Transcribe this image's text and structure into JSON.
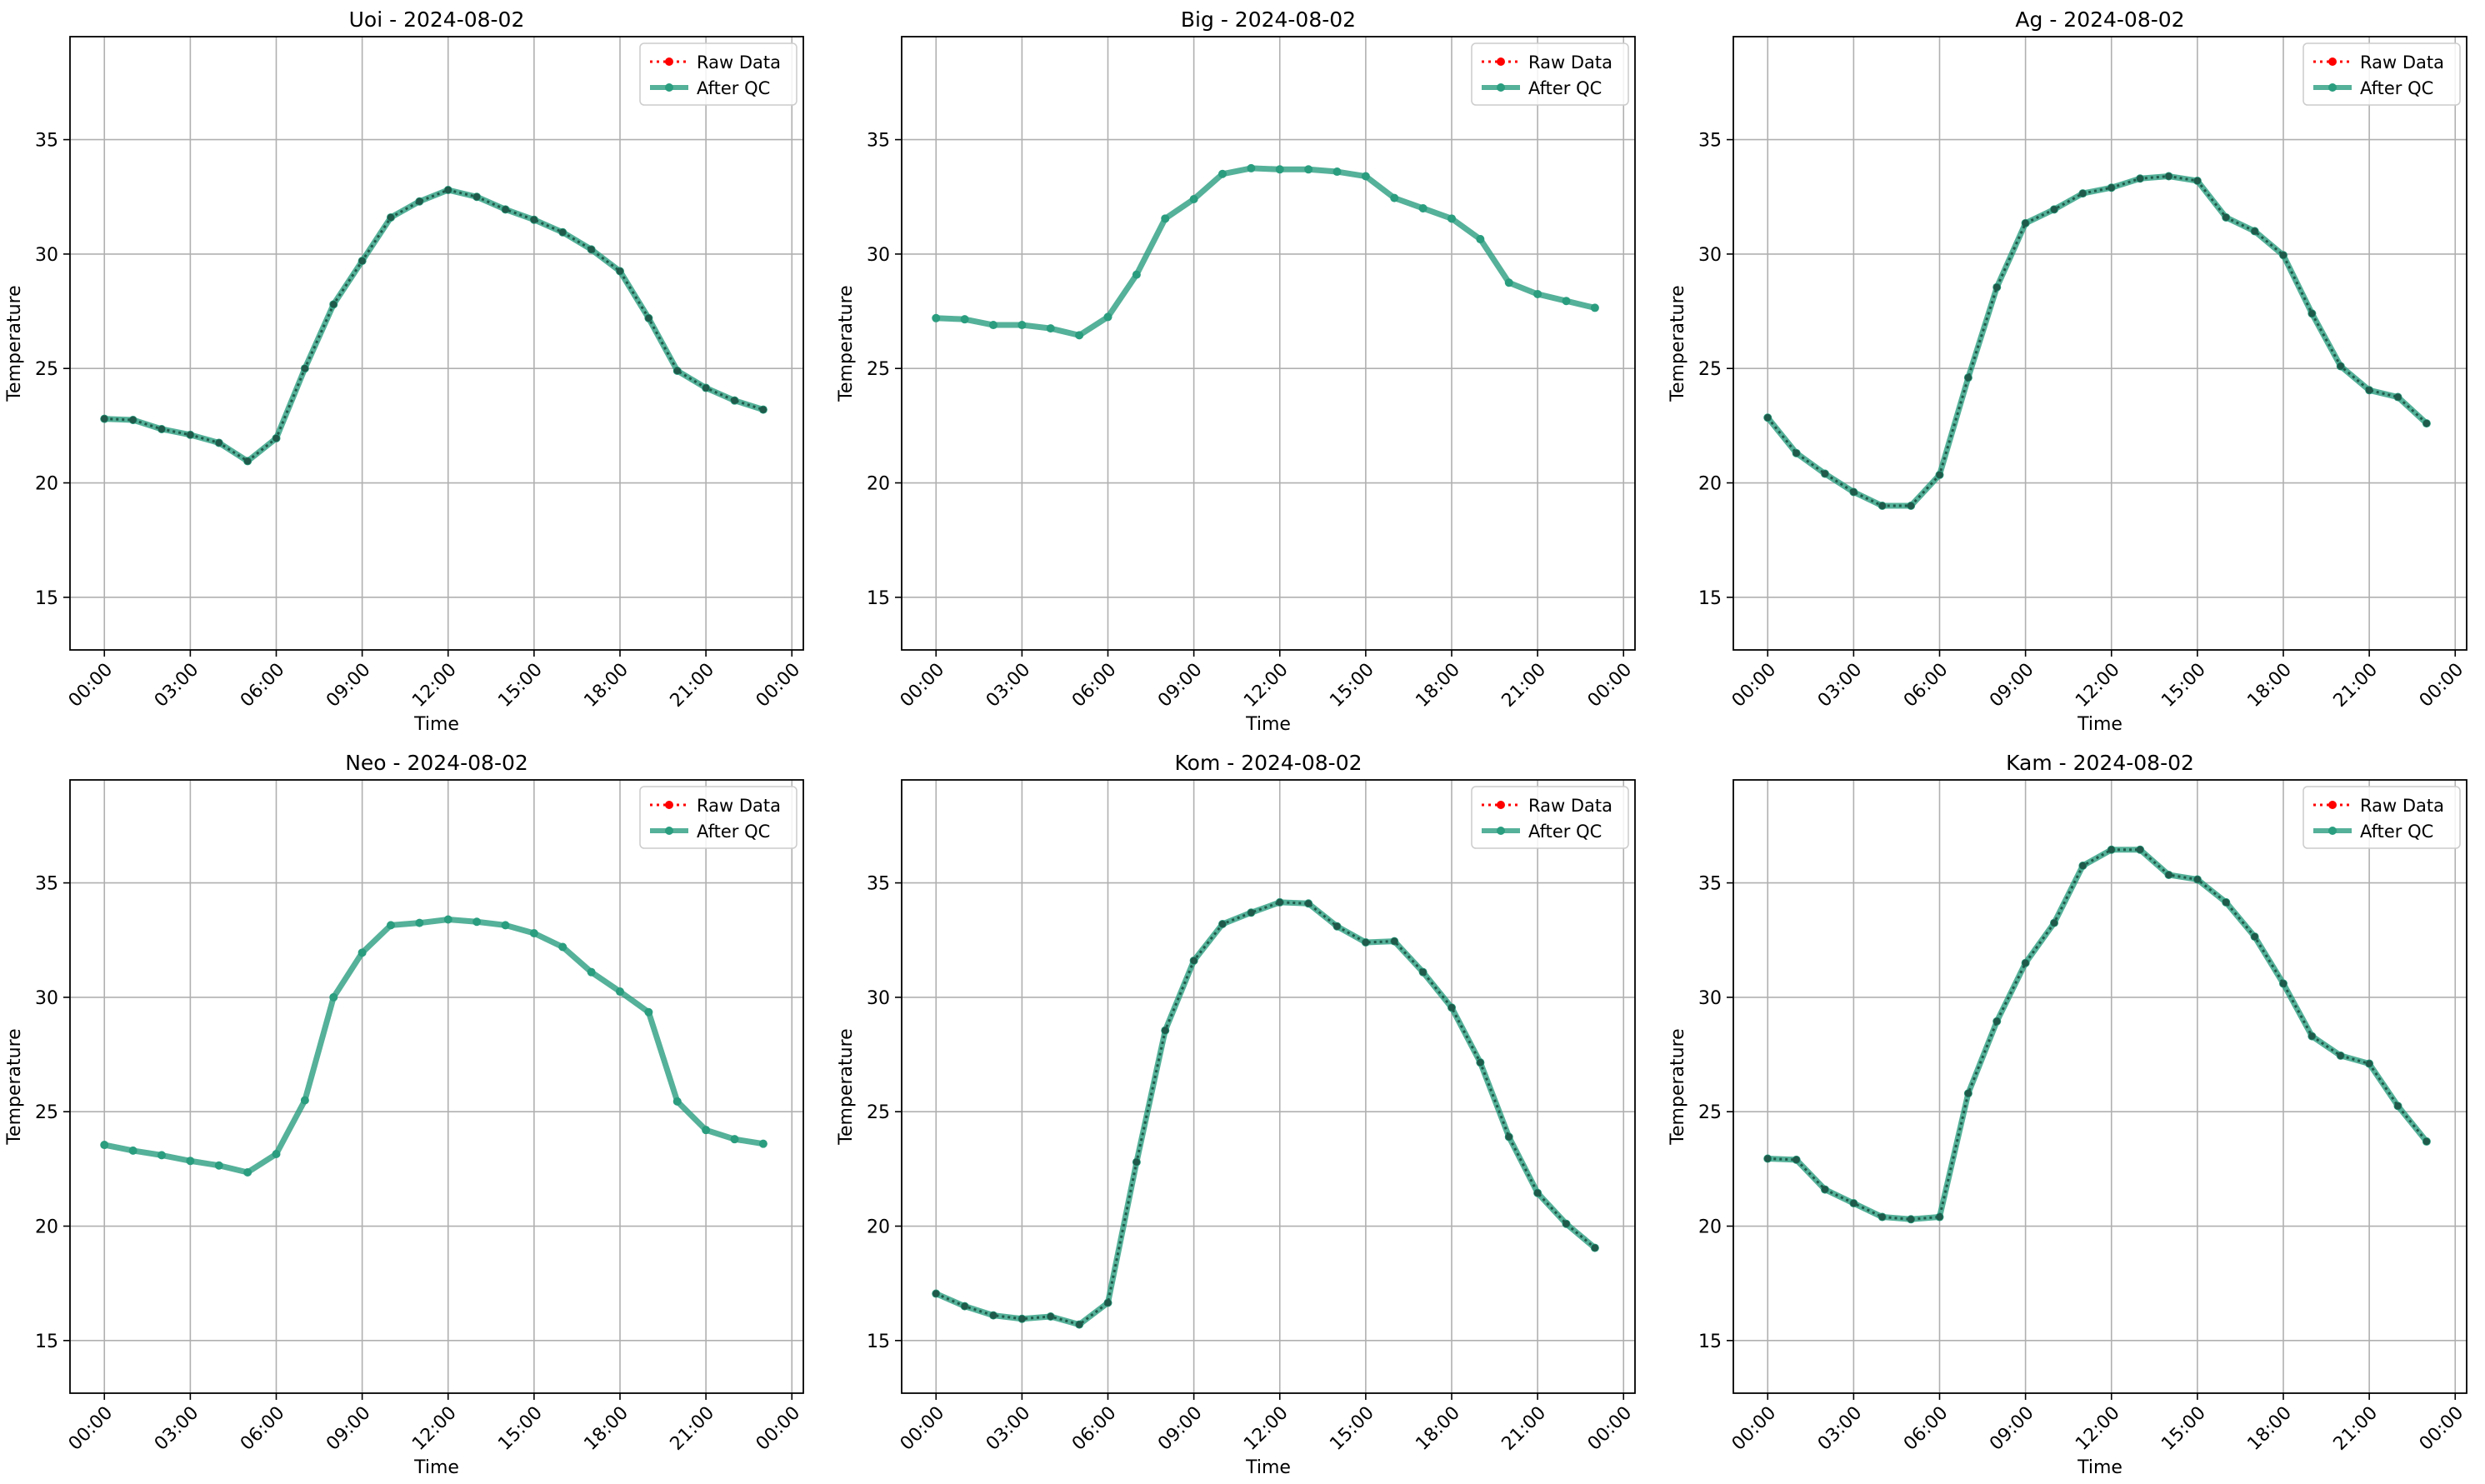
{
  "colors": {
    "raw": "#ff0000",
    "qc": "#2a9d7f",
    "marker_dark": "#1f5a4a",
    "grid": "#b0b0b0",
    "axis": "#000000"
  },
  "legend": {
    "raw_label": "Raw Data",
    "qc_label": "After QC",
    "placement": "upper-right"
  },
  "chart_data": [
    {
      "type": "line",
      "title": "Uoi - 2024-08-02",
      "xlabel": "Time",
      "ylabel": "Temperature",
      "xticks": [
        "00:00",
        "03:00",
        "06:00",
        "09:00",
        "12:00",
        "15:00",
        "18:00",
        "21:00",
        "00:00"
      ],
      "yticks": [
        15,
        20,
        25,
        30,
        35
      ],
      "ylim": [
        12.7,
        39.5
      ],
      "grid": true,
      "x_hours": [
        0,
        1,
        2,
        3,
        4,
        5,
        6,
        7,
        8,
        9,
        10,
        11,
        12,
        13,
        14,
        15,
        16,
        17,
        18,
        19,
        20,
        21,
        22,
        23
      ],
      "series": [
        {
          "name": "Raw Data",
          "values": [
            22.8,
            22.75,
            22.35,
            22.1,
            21.75,
            20.95,
            21.95,
            25.0,
            27.8,
            29.7,
            31.6,
            32.3,
            32.8,
            32.5,
            31.95,
            31.5,
            30.95,
            30.2,
            29.25,
            27.2,
            24.9,
            24.15,
            23.6,
            23.2
          ]
        },
        {
          "name": "After QC",
          "values": [
            22.8,
            22.75,
            22.35,
            22.1,
            21.75,
            20.95,
            21.95,
            25.0,
            27.8,
            29.7,
            31.6,
            32.3,
            32.8,
            32.5,
            31.95,
            31.5,
            30.95,
            30.2,
            29.25,
            27.2,
            24.9,
            24.15,
            23.6,
            23.2
          ]
        }
      ]
    },
    {
      "type": "line",
      "title": "Big - 2024-08-02",
      "xlabel": "Time",
      "ylabel": "Temperature",
      "xticks": [
        "00:00",
        "03:00",
        "06:00",
        "09:00",
        "12:00",
        "15:00",
        "18:00",
        "21:00",
        "00:00"
      ],
      "yticks": [
        15,
        20,
        25,
        30,
        35
      ],
      "ylim": [
        12.7,
        39.5
      ],
      "grid": true,
      "x_hours": [
        0,
        1,
        2,
        3,
        4,
        5,
        6,
        7,
        8,
        9,
        10,
        11,
        12,
        13,
        14,
        15,
        16,
        17,
        18,
        19,
        20,
        21,
        22,
        23
      ],
      "series": [
        {
          "name": "Raw Data",
          "values": []
        },
        {
          "name": "After QC",
          "values": [
            27.2,
            27.15,
            26.9,
            26.9,
            26.75,
            26.45,
            27.25,
            29.1,
            31.55,
            32.4,
            33.5,
            33.75,
            33.7,
            33.7,
            33.6,
            33.4,
            32.45,
            32.0,
            31.55,
            30.65,
            28.75,
            28.25,
            27.95,
            27.65
          ]
        }
      ]
    },
    {
      "type": "line",
      "title": "Ag - 2024-08-02",
      "xlabel": "Time",
      "ylabel": "Temperature",
      "xticks": [
        "00:00",
        "03:00",
        "06:00",
        "09:00",
        "12:00",
        "15:00",
        "18:00",
        "21:00",
        "00:00"
      ],
      "yticks": [
        15,
        20,
        25,
        30,
        35
      ],
      "ylim": [
        12.7,
        39.5
      ],
      "grid": true,
      "x_hours": [
        0,
        1,
        2,
        3,
        4,
        5,
        6,
        7,
        8,
        9,
        10,
        11,
        12,
        13,
        14,
        15,
        16,
        17,
        18,
        19,
        20,
        21,
        22,
        23
      ],
      "series": [
        {
          "name": "Raw Data",
          "values": [
            22.85,
            21.3,
            20.4,
            19.6,
            19.0,
            19.0,
            20.35,
            24.6,
            28.55,
            31.35,
            31.95,
            32.65,
            32.9,
            33.3,
            33.4,
            33.2,
            31.6,
            31.0,
            29.95,
            27.4,
            25.1,
            24.05,
            23.75,
            22.6
          ]
        },
        {
          "name": "After QC",
          "values": [
            22.85,
            21.3,
            20.4,
            19.6,
            19.0,
            19.0,
            20.35,
            24.6,
            28.55,
            31.35,
            31.95,
            32.65,
            32.9,
            33.3,
            33.4,
            33.2,
            31.6,
            31.0,
            29.95,
            27.4,
            25.1,
            24.05,
            23.75,
            22.6
          ]
        }
      ]
    },
    {
      "type": "line",
      "title": "Neo - 2024-08-02",
      "xlabel": "Time",
      "ylabel": "Temperature",
      "xticks": [
        "00:00",
        "03:00",
        "06:00",
        "09:00",
        "12:00",
        "15:00",
        "18:00",
        "21:00",
        "00:00"
      ],
      "yticks": [
        15,
        20,
        25,
        30,
        35
      ],
      "ylim": [
        12.7,
        39.5
      ],
      "grid": true,
      "x_hours": [
        0,
        1,
        2,
        3,
        4,
        5,
        6,
        7,
        8,
        9,
        10,
        11,
        12,
        13,
        14,
        15,
        16,
        17,
        18,
        19,
        20,
        21,
        22,
        23
      ],
      "series": [
        {
          "name": "Raw Data",
          "values": []
        },
        {
          "name": "After QC",
          "values": [
            23.55,
            23.3,
            23.1,
            22.85,
            22.65,
            22.35,
            23.15,
            25.5,
            30.0,
            31.95,
            33.15,
            33.25,
            33.4,
            33.3,
            33.15,
            32.8,
            32.2,
            31.1,
            30.25,
            29.35,
            25.45,
            24.2,
            23.8,
            23.6
          ]
        }
      ]
    },
    {
      "type": "line",
      "title": "Kom - 2024-08-02",
      "xlabel": "Time",
      "ylabel": "Temperature",
      "xticks": [
        "00:00",
        "03:00",
        "06:00",
        "09:00",
        "12:00",
        "15:00",
        "18:00",
        "21:00",
        "00:00"
      ],
      "yticks": [
        15,
        20,
        25,
        30,
        35
      ],
      "ylim": [
        12.7,
        39.5
      ],
      "grid": true,
      "x_hours": [
        0,
        1,
        2,
        3,
        4,
        5,
        6,
        7,
        8,
        9,
        10,
        11,
        12,
        13,
        14,
        15,
        16,
        17,
        18,
        19,
        20,
        21,
        22,
        23
      ],
      "series": [
        {
          "name": "Raw Data",
          "values": [
            17.05,
            16.5,
            16.1,
            15.95,
            16.05,
            15.7,
            16.65,
            22.8,
            28.55,
            31.6,
            33.2,
            33.7,
            34.15,
            34.1,
            33.1,
            32.4,
            32.45,
            31.1,
            29.55,
            27.15,
            23.9,
            21.45,
            20.1,
            19.05
          ]
        },
        {
          "name": "After QC",
          "values": [
            17.05,
            16.5,
            16.1,
            15.95,
            16.05,
            15.7,
            16.65,
            22.8,
            28.55,
            31.6,
            33.2,
            33.7,
            34.15,
            34.1,
            33.1,
            32.4,
            32.45,
            31.1,
            29.55,
            27.15,
            23.9,
            21.45,
            20.1,
            19.05
          ]
        }
      ]
    },
    {
      "type": "line",
      "title": "Kam - 2024-08-02",
      "xlabel": "Time",
      "ylabel": "Temperature",
      "xticks": [
        "00:00",
        "03:00",
        "06:00",
        "09:00",
        "12:00",
        "15:00",
        "18:00",
        "21:00",
        "00:00"
      ],
      "yticks": [
        15,
        20,
        25,
        30,
        35
      ],
      "ylim": [
        12.7,
        39.5
      ],
      "grid": true,
      "x_hours": [
        0,
        1,
        2,
        3,
        4,
        5,
        6,
        7,
        8,
        9,
        10,
        11,
        12,
        13,
        14,
        15,
        16,
        17,
        18,
        19,
        20,
        21,
        22,
        23
      ],
      "series": [
        {
          "name": "Raw Data",
          "values": [
            22.95,
            22.9,
            21.6,
            21.0,
            20.4,
            20.3,
            20.4,
            25.8,
            28.95,
            31.5,
            33.25,
            35.75,
            36.45,
            36.45,
            35.35,
            35.15,
            34.15,
            32.65,
            30.6,
            28.3,
            27.45,
            27.1,
            25.25,
            23.7
          ]
        },
        {
          "name": "After QC",
          "values": [
            22.95,
            22.9,
            21.6,
            21.0,
            20.4,
            20.3,
            20.4,
            25.8,
            28.95,
            31.5,
            33.25,
            35.75,
            36.45,
            36.45,
            35.35,
            35.15,
            34.15,
            32.65,
            30.6,
            28.3,
            27.45,
            27.1,
            25.25,
            23.7
          ]
        }
      ]
    }
  ]
}
